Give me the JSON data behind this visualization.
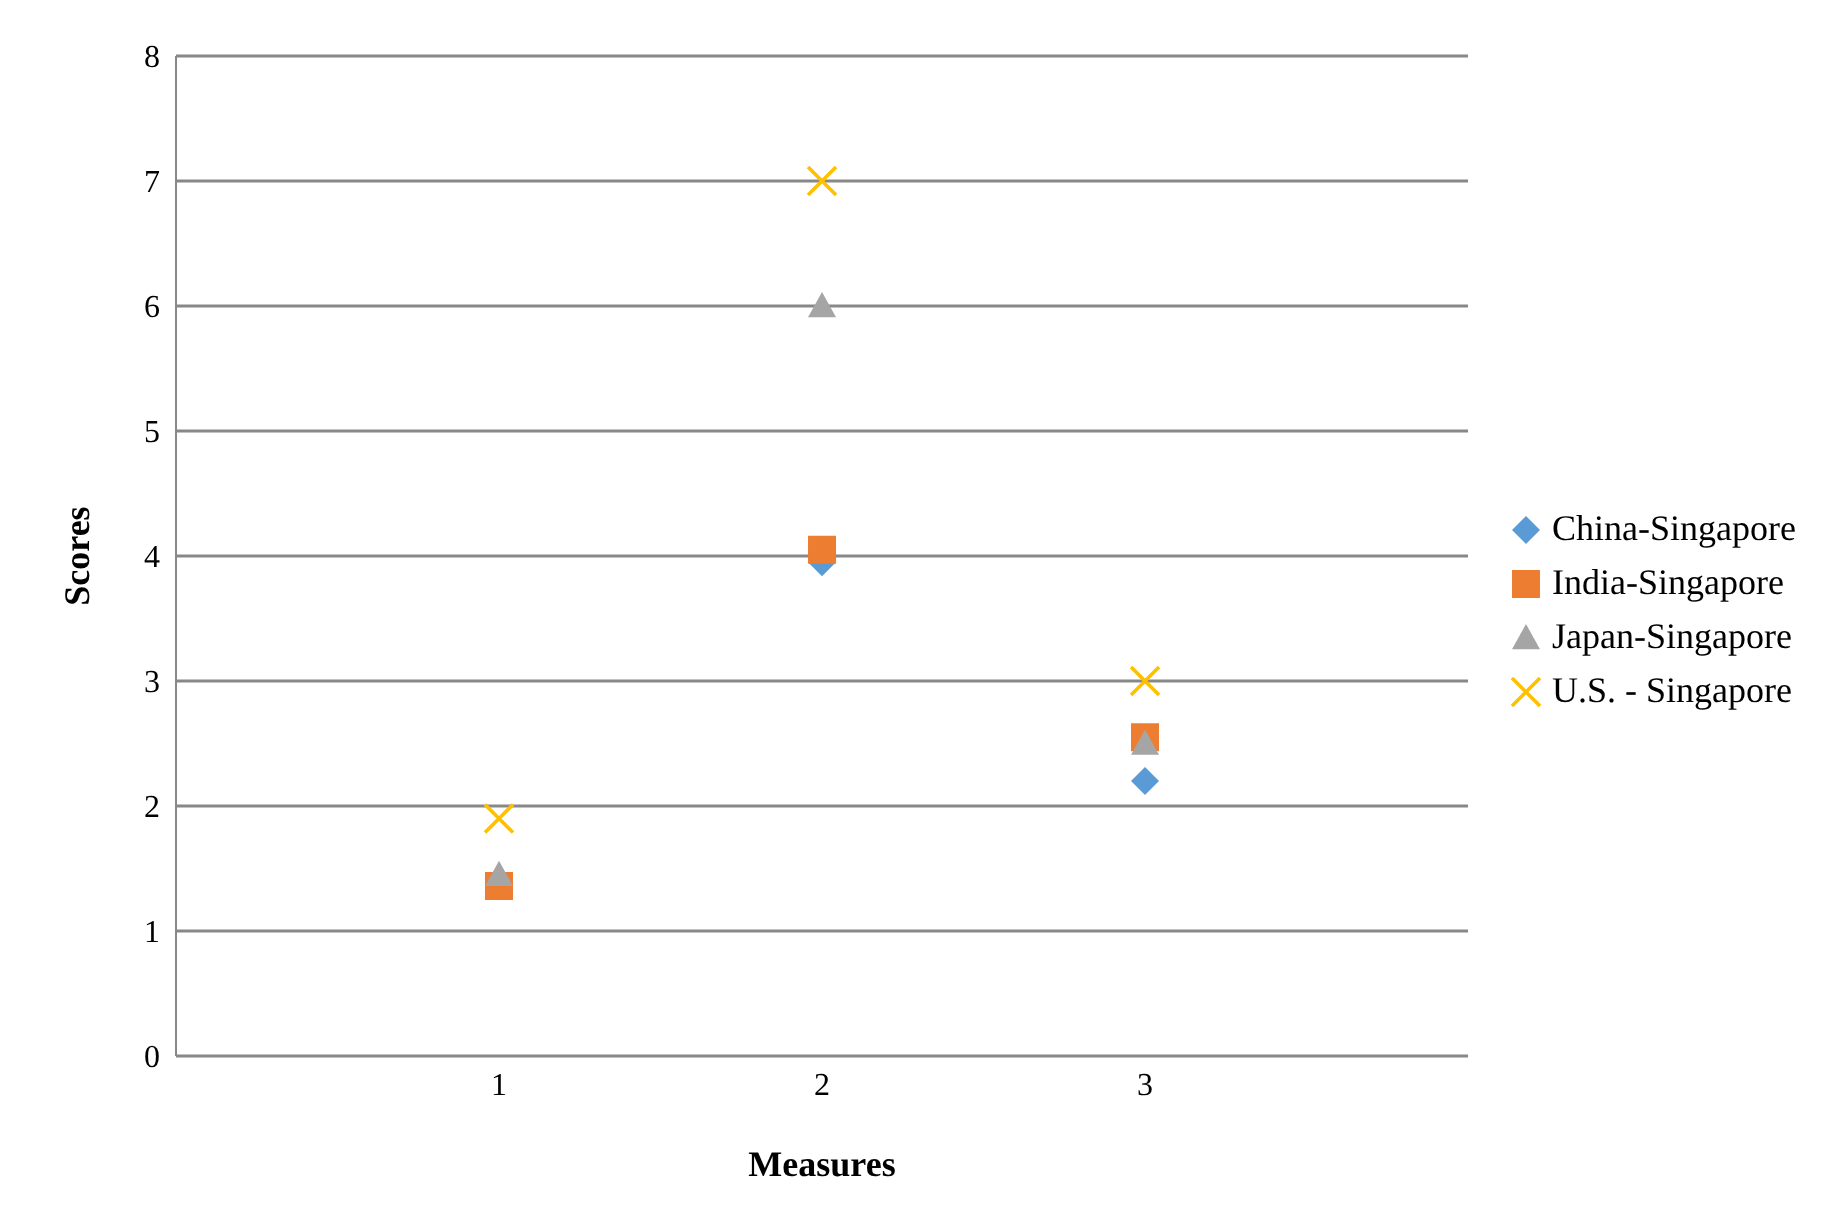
{
  "chart_data": {
    "type": "scatter",
    "xlabel": "Measures",
    "ylabel": "Scores",
    "x": [
      1,
      2,
      3
    ],
    "xlim": [
      0,
      4
    ],
    "xticks": [
      1,
      2,
      3
    ],
    "ylim": [
      0,
      8
    ],
    "yticks": [
      0,
      1,
      2,
      3,
      4,
      5,
      6,
      7,
      8
    ],
    "grid": "y",
    "legend": "right",
    "series": [
      {
        "name": "China-Singapore",
        "color": "#5b9bd5",
        "marker": "diamond",
        "values": [
          null,
          3.95,
          2.2
        ]
      },
      {
        "name": "India-Singapore",
        "color": "#ed7d31",
        "marker": "square",
        "values": [
          1.36,
          4.05,
          2.55
        ]
      },
      {
        "name": "Japan-Singapore",
        "color": "#a5a5a5",
        "marker": "triangle",
        "values": [
          1.45,
          6.0,
          2.5
        ]
      },
      {
        "name": "U.S. - Singapore",
        "color": "#ffc000",
        "marker": "cross",
        "values": [
          1.9,
          7.0,
          3.0
        ]
      }
    ]
  }
}
